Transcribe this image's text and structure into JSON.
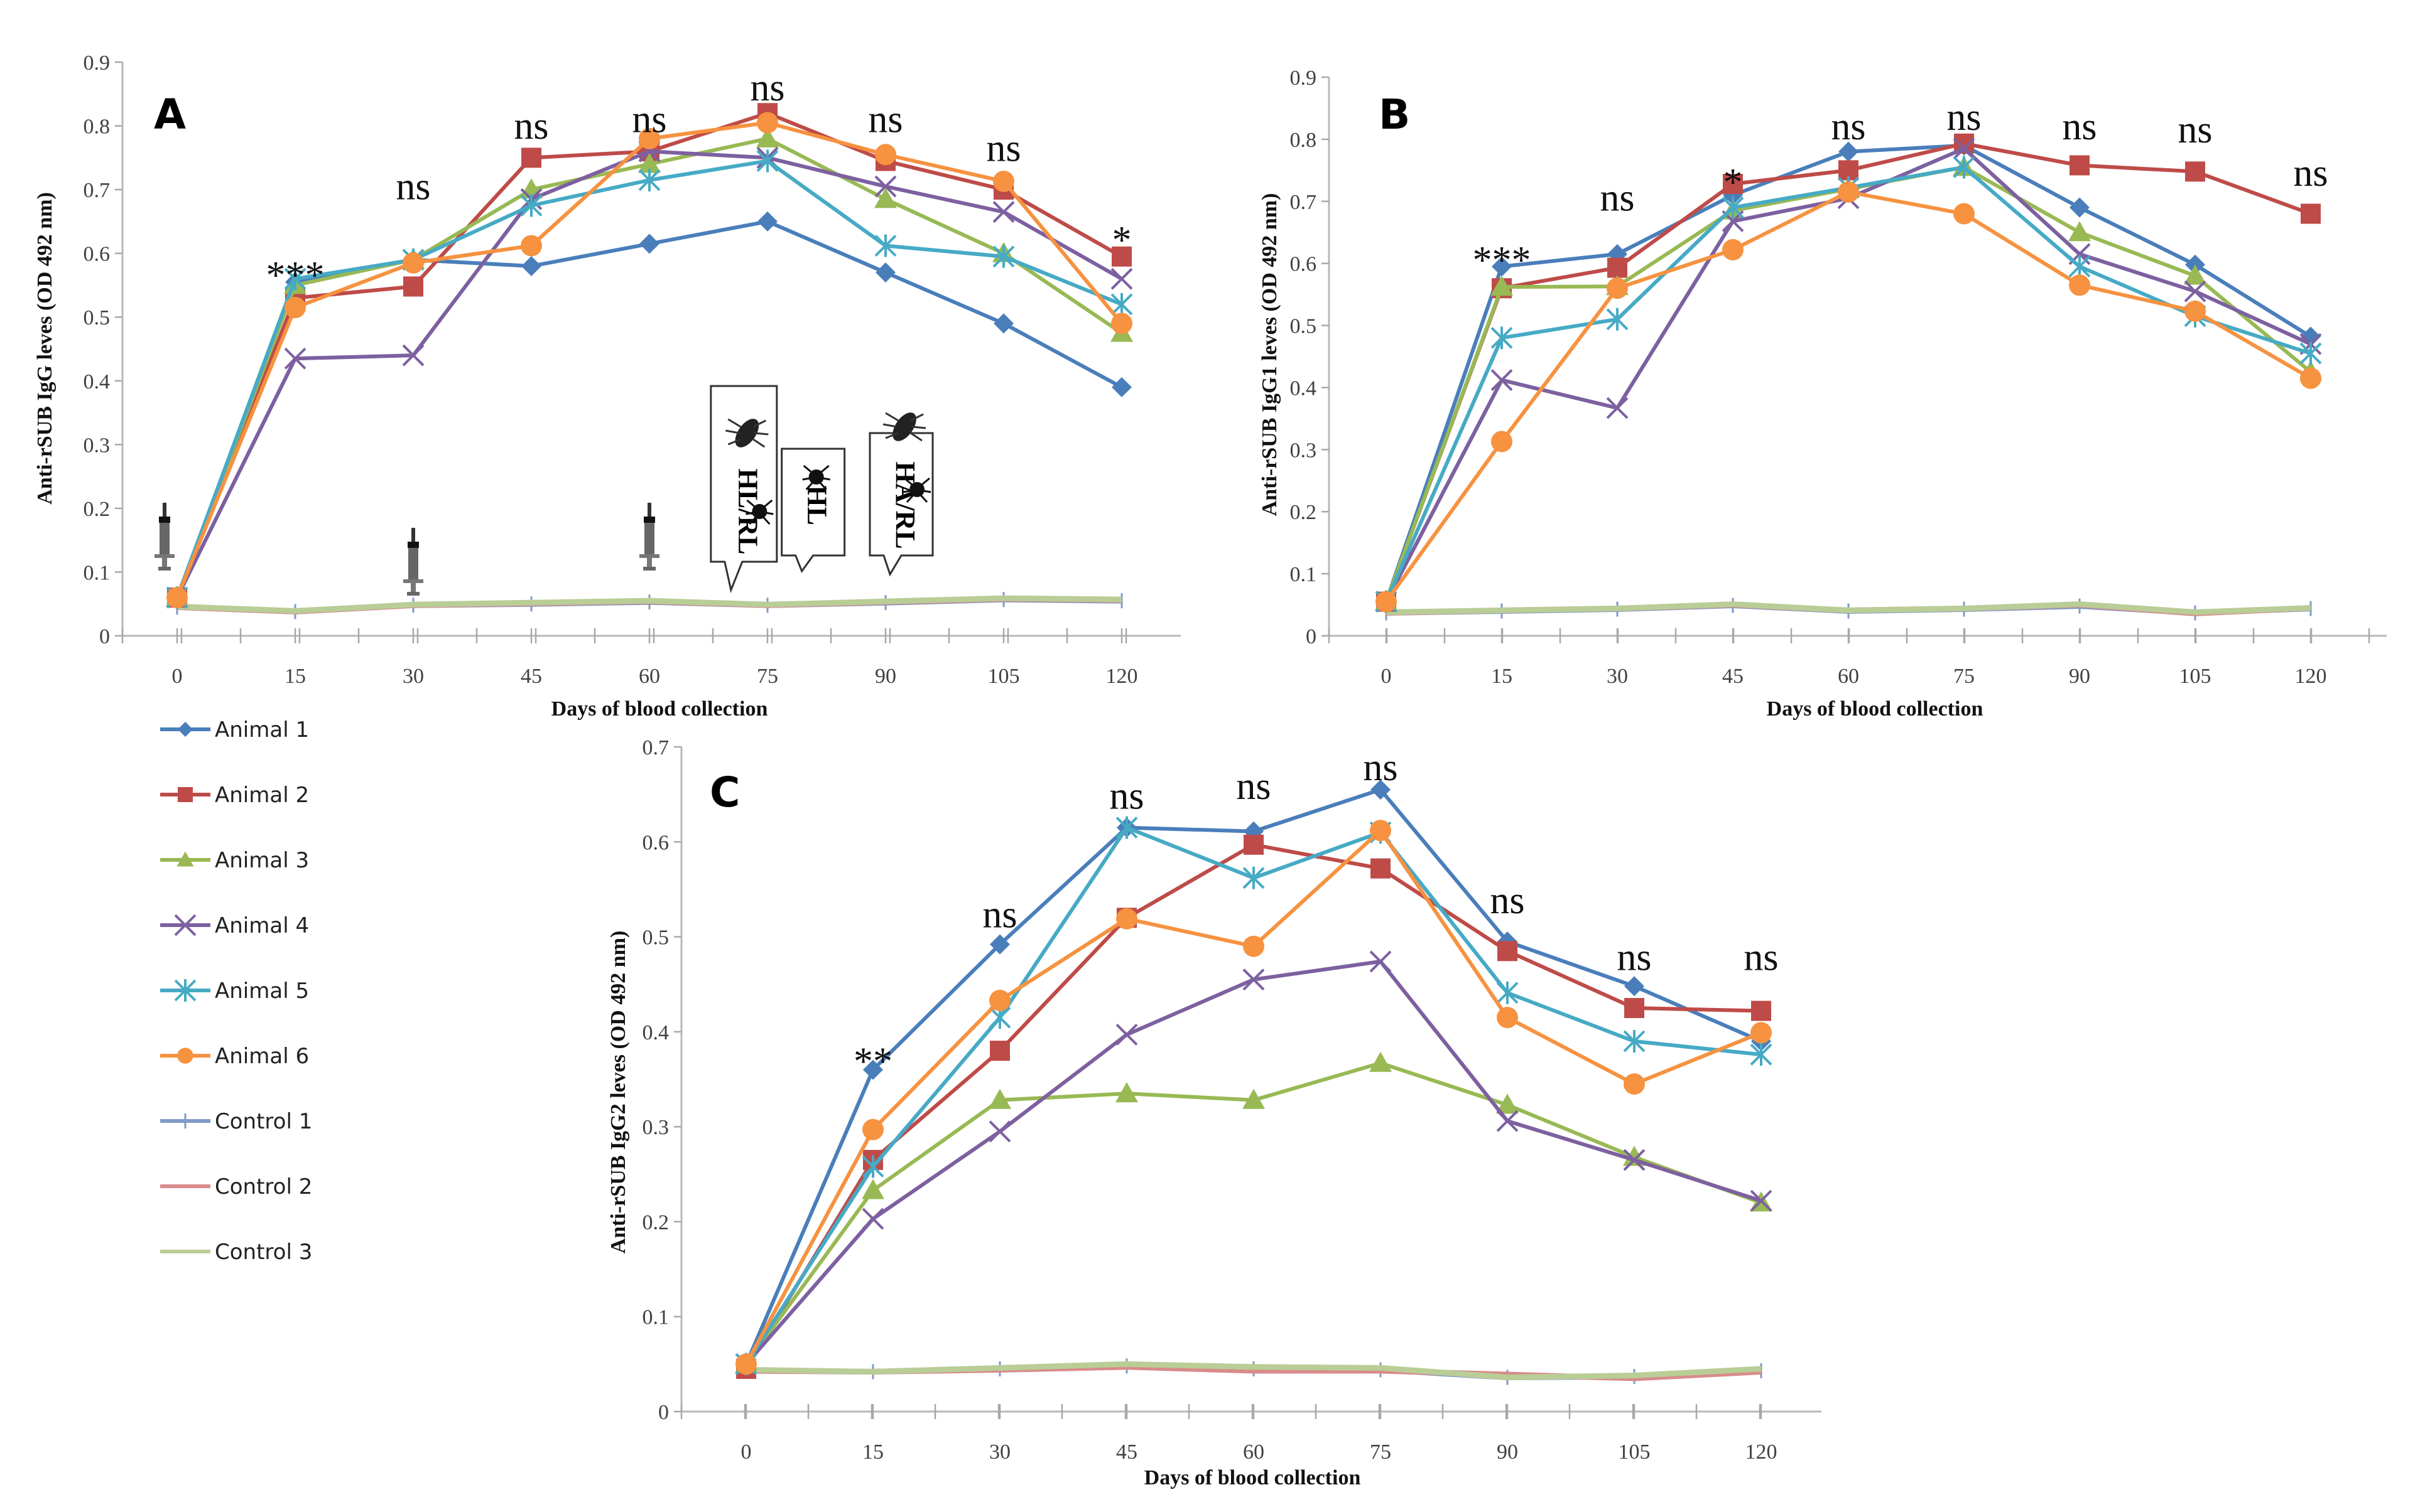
{
  "series_styles": [
    {
      "name": "Animal 1",
      "color": "#4A7EBB",
      "marker": "diamond"
    },
    {
      "name": "Animal 2",
      "color": "#BE4B48",
      "marker": "square"
    },
    {
      "name": "Animal 3",
      "color": "#98B954",
      "marker": "triangle"
    },
    {
      "name": "Animal 4",
      "color": "#7D60A0",
      "marker": "x"
    },
    {
      "name": "Animal 5",
      "color": "#46AAC5",
      "marker": "star"
    },
    {
      "name": "Animal 6",
      "color": "#F69240",
      "marker": "circle"
    },
    {
      "name": "Control 1",
      "color": "#7E9BC8",
      "marker": "plus"
    },
    {
      "name": "Control 2",
      "color": "#D98B8B",
      "marker": "none"
    },
    {
      "name": "Control 3",
      "color": "#B9CD96",
      "marker": "none"
    }
  ],
  "legend": {
    "placement": "left-middle",
    "items": [
      "Animal 1",
      "Animal 2",
      "Animal 3",
      "Animal 4",
      "Animal 5",
      "Animal 6",
      "Control 1",
      "Control 2",
      "Control 3"
    ]
  },
  "chart_data": [
    {
      "panel": "A",
      "type": "line",
      "title": "",
      "xlabel": "Days of blood collection",
      "ylabel": "Anti-rSUB IgG leves (OD 492 nm)",
      "x": [
        0,
        15,
        30,
        45,
        60,
        75,
        90,
        105,
        120
      ],
      "xticks": [
        "0",
        "15",
        "30",
        "45",
        "60",
        "75",
        "90",
        "105",
        "120"
      ],
      "yticks": [
        "0",
        "0.1",
        "0.2",
        "0.3",
        "0.4",
        "0.5",
        "0.6",
        "0.7",
        "0.8",
        "0.9"
      ],
      "ylim": [
        0,
        0.9
      ],
      "grid": false,
      "series": [
        {
          "name": "Animal 1",
          "values": [
            0.06,
            0.555,
            0.59,
            0.58,
            0.615,
            0.65,
            0.57,
            0.49,
            0.39
          ]
        },
        {
          "name": "Animal 2",
          "values": [
            0.06,
            0.53,
            0.548,
            0.75,
            0.76,
            0.82,
            0.745,
            0.7,
            0.595
          ]
        },
        {
          "name": "Animal 3",
          "values": [
            0.06,
            0.55,
            0.59,
            0.7,
            0.74,
            0.78,
            0.685,
            0.6,
            0.475
          ]
        },
        {
          "name": "Animal 4",
          "values": [
            0.06,
            0.435,
            0.44,
            0.685,
            0.76,
            0.75,
            0.705,
            0.665,
            0.56
          ]
        },
        {
          "name": "Animal 5",
          "values": [
            0.06,
            0.56,
            0.59,
            0.675,
            0.715,
            0.745,
            0.612,
            0.595,
            0.52
          ]
        },
        {
          "name": "Animal 6",
          "values": [
            0.06,
            0.515,
            0.585,
            0.612,
            0.78,
            0.805,
            0.755,
            0.713,
            0.49
          ]
        },
        {
          "name": "Control 1",
          "values": [
            0.045,
            0.038,
            0.048,
            0.05,
            0.053,
            0.048,
            0.052,
            0.057,
            0.055
          ]
        },
        {
          "name": "Control 2",
          "values": [
            0.045,
            0.038,
            0.048,
            0.051,
            0.054,
            0.048,
            0.053,
            0.058,
            0.056
          ]
        },
        {
          "name": "Control 3",
          "values": [
            0.046,
            0.039,
            0.049,
            0.052,
            0.055,
            0.049,
            0.054,
            0.059,
            0.057
          ]
        }
      ],
      "annotations": [
        {
          "x": 15,
          "y": 0.575,
          "text": "***"
        },
        {
          "x": 30,
          "y": 0.685,
          "text": "ns"
        },
        {
          "x": 45,
          "y": 0.78,
          "text": "ns"
        },
        {
          "x": 60,
          "y": 0.79,
          "text": "ns"
        },
        {
          "x": 75,
          "y": 0.84,
          "text": "ns"
        },
        {
          "x": 90,
          "y": 0.79,
          "text": "ns"
        },
        {
          "x": 105,
          "y": 0.745,
          "text": "ns"
        },
        {
          "x": 120,
          "y": 0.63,
          "text": "*"
        }
      ],
      "syringe_markers_days": [
        0,
        30,
        60
      ],
      "tick_callouts": [
        {
          "x": 70,
          "text": "HL/RL"
        },
        {
          "x": 80,
          "text": "HL"
        },
        {
          "x": 90,
          "text": "HA/RL"
        }
      ]
    },
    {
      "panel": "B",
      "type": "line",
      "title": "",
      "xlabel": "Days of blood collection",
      "ylabel": "Anti-rSUB IgG1 leves (OD 492 nm)",
      "x": [
        0,
        15,
        30,
        45,
        60,
        75,
        90,
        105,
        120
      ],
      "xticks": [
        "0",
        "15",
        "30",
        "45",
        "60",
        "75",
        "90",
        "105",
        "120"
      ],
      "yticks": [
        "0",
        "0.1",
        "0.2",
        "0.3",
        "0.4",
        "0.5",
        "0.6",
        "0.7",
        "0.8",
        "0.9"
      ],
      "ylim": [
        0,
        0.9
      ],
      "grid": false,
      "series": [
        {
          "name": "Animal 1",
          "values": [
            0.055,
            0.595,
            0.615,
            0.71,
            0.78,
            0.79,
            0.69,
            0.598,
            0.482
          ]
        },
        {
          "name": "Animal 2",
          "values": [
            0.055,
            0.56,
            0.593,
            0.728,
            0.75,
            0.793,
            0.758,
            0.748,
            0.68
          ]
        },
        {
          "name": "Animal 3",
          "values": [
            0.055,
            0.562,
            0.563,
            0.685,
            0.72,
            0.755,
            0.65,
            0.58,
            0.425
          ]
        },
        {
          "name": "Animal 4",
          "values": [
            0.055,
            0.412,
            0.367,
            0.668,
            0.705,
            0.785,
            0.615,
            0.555,
            0.47
          ]
        },
        {
          "name": "Animal 5",
          "values": [
            0.055,
            0.48,
            0.51,
            0.69,
            0.722,
            0.755,
            0.595,
            0.515,
            0.455
          ]
        },
        {
          "name": "Animal 6",
          "values": [
            0.055,
            0.313,
            0.56,
            0.622,
            0.715,
            0.68,
            0.565,
            0.523,
            0.415
          ]
        },
        {
          "name": "Control 1",
          "values": [
            0.037,
            0.04,
            0.043,
            0.049,
            0.04,
            0.043,
            0.048,
            0.037,
            0.044
          ]
        },
        {
          "name": "Control 2",
          "values": [
            0.037,
            0.041,
            0.044,
            0.05,
            0.041,
            0.044,
            0.05,
            0.036,
            0.045
          ]
        },
        {
          "name": "Control 3",
          "values": [
            0.038,
            0.041,
            0.044,
            0.051,
            0.041,
            0.044,
            0.051,
            0.038,
            0.045
          ]
        }
      ],
      "annotations": [
        {
          "x": 15,
          "y": 0.615,
          "text": "***"
        },
        {
          "x": 30,
          "y": 0.685,
          "text": "ns"
        },
        {
          "x": 45,
          "y": 0.74,
          "text": "*"
        },
        {
          "x": 60,
          "y": 0.8,
          "text": "ns"
        },
        {
          "x": 75,
          "y": 0.815,
          "text": "ns"
        },
        {
          "x": 90,
          "y": 0.8,
          "text": "ns"
        },
        {
          "x": 105,
          "y": 0.795,
          "text": "ns"
        },
        {
          "x": 120,
          "y": 0.725,
          "text": "ns"
        }
      ]
    },
    {
      "panel": "C",
      "type": "line",
      "title": "",
      "xlabel": "Days of blood collection",
      "ylabel": "Anti-rSUB IgG2 leves (OD 492 nm)",
      "x": [
        0,
        15,
        30,
        45,
        60,
        75,
        90,
        105,
        120
      ],
      "xticks": [
        "0",
        "15",
        "30",
        "45",
        "60",
        "75",
        "90",
        "105",
        "120"
      ],
      "yticks": [
        "0",
        "0.1",
        "0.2",
        "0.3",
        "0.4",
        "0.5",
        "0.6",
        "0.7"
      ],
      "ylim": [
        0,
        0.7
      ],
      "grid": false,
      "series": [
        {
          "name": "Animal 1",
          "values": [
            0.05,
            0.36,
            0.492,
            0.615,
            0.611,
            0.655,
            0.495,
            0.448,
            0.39
          ]
        },
        {
          "name": "Animal 2",
          "values": [
            0.045,
            0.265,
            0.38,
            0.52,
            0.597,
            0.572,
            0.485,
            0.425,
            0.422
          ]
        },
        {
          "name": "Animal 3",
          "values": [
            0.05,
            0.233,
            0.328,
            0.335,
            0.328,
            0.367,
            0.323,
            0.268,
            0.22
          ]
        },
        {
          "name": "Animal 4",
          "values": [
            0.05,
            0.203,
            0.295,
            0.397,
            0.455,
            0.474,
            0.306,
            0.265,
            0.222
          ]
        },
        {
          "name": "Animal 5",
          "values": [
            0.05,
            0.258,
            0.415,
            0.615,
            0.562,
            0.61,
            0.441,
            0.39,
            0.376
          ]
        },
        {
          "name": "Animal 6",
          "values": [
            0.05,
            0.297,
            0.433,
            0.519,
            0.49,
            0.612,
            0.415,
            0.345,
            0.399
          ]
        },
        {
          "name": "Control 1",
          "values": [
            0.043,
            0.042,
            0.045,
            0.048,
            0.045,
            0.044,
            0.036,
            0.037,
            0.043
          ]
        },
        {
          "name": "Control 2",
          "values": [
            0.043,
            0.042,
            0.044,
            0.047,
            0.043,
            0.043,
            0.039,
            0.035,
            0.042
          ]
        },
        {
          "name": "Control 3",
          "values": [
            0.044,
            0.042,
            0.046,
            0.05,
            0.047,
            0.046,
            0.036,
            0.038,
            0.045
          ]
        }
      ],
      "annotations": [
        {
          "x": 15,
          "y": 0.375,
          "text": "**"
        },
        {
          "x": 30,
          "y": 0.51,
          "text": "ns"
        },
        {
          "x": 45,
          "y": 0.635,
          "text": "ns"
        },
        {
          "x": 60,
          "y": 0.645,
          "text": "ns"
        },
        {
          "x": 75,
          "y": 0.665,
          "text": "ns"
        },
        {
          "x": 90,
          "y": 0.525,
          "text": "ns"
        },
        {
          "x": 105,
          "y": 0.465,
          "text": "ns"
        },
        {
          "x": 120,
          "y": 0.465,
          "text": "ns"
        }
      ]
    }
  ]
}
